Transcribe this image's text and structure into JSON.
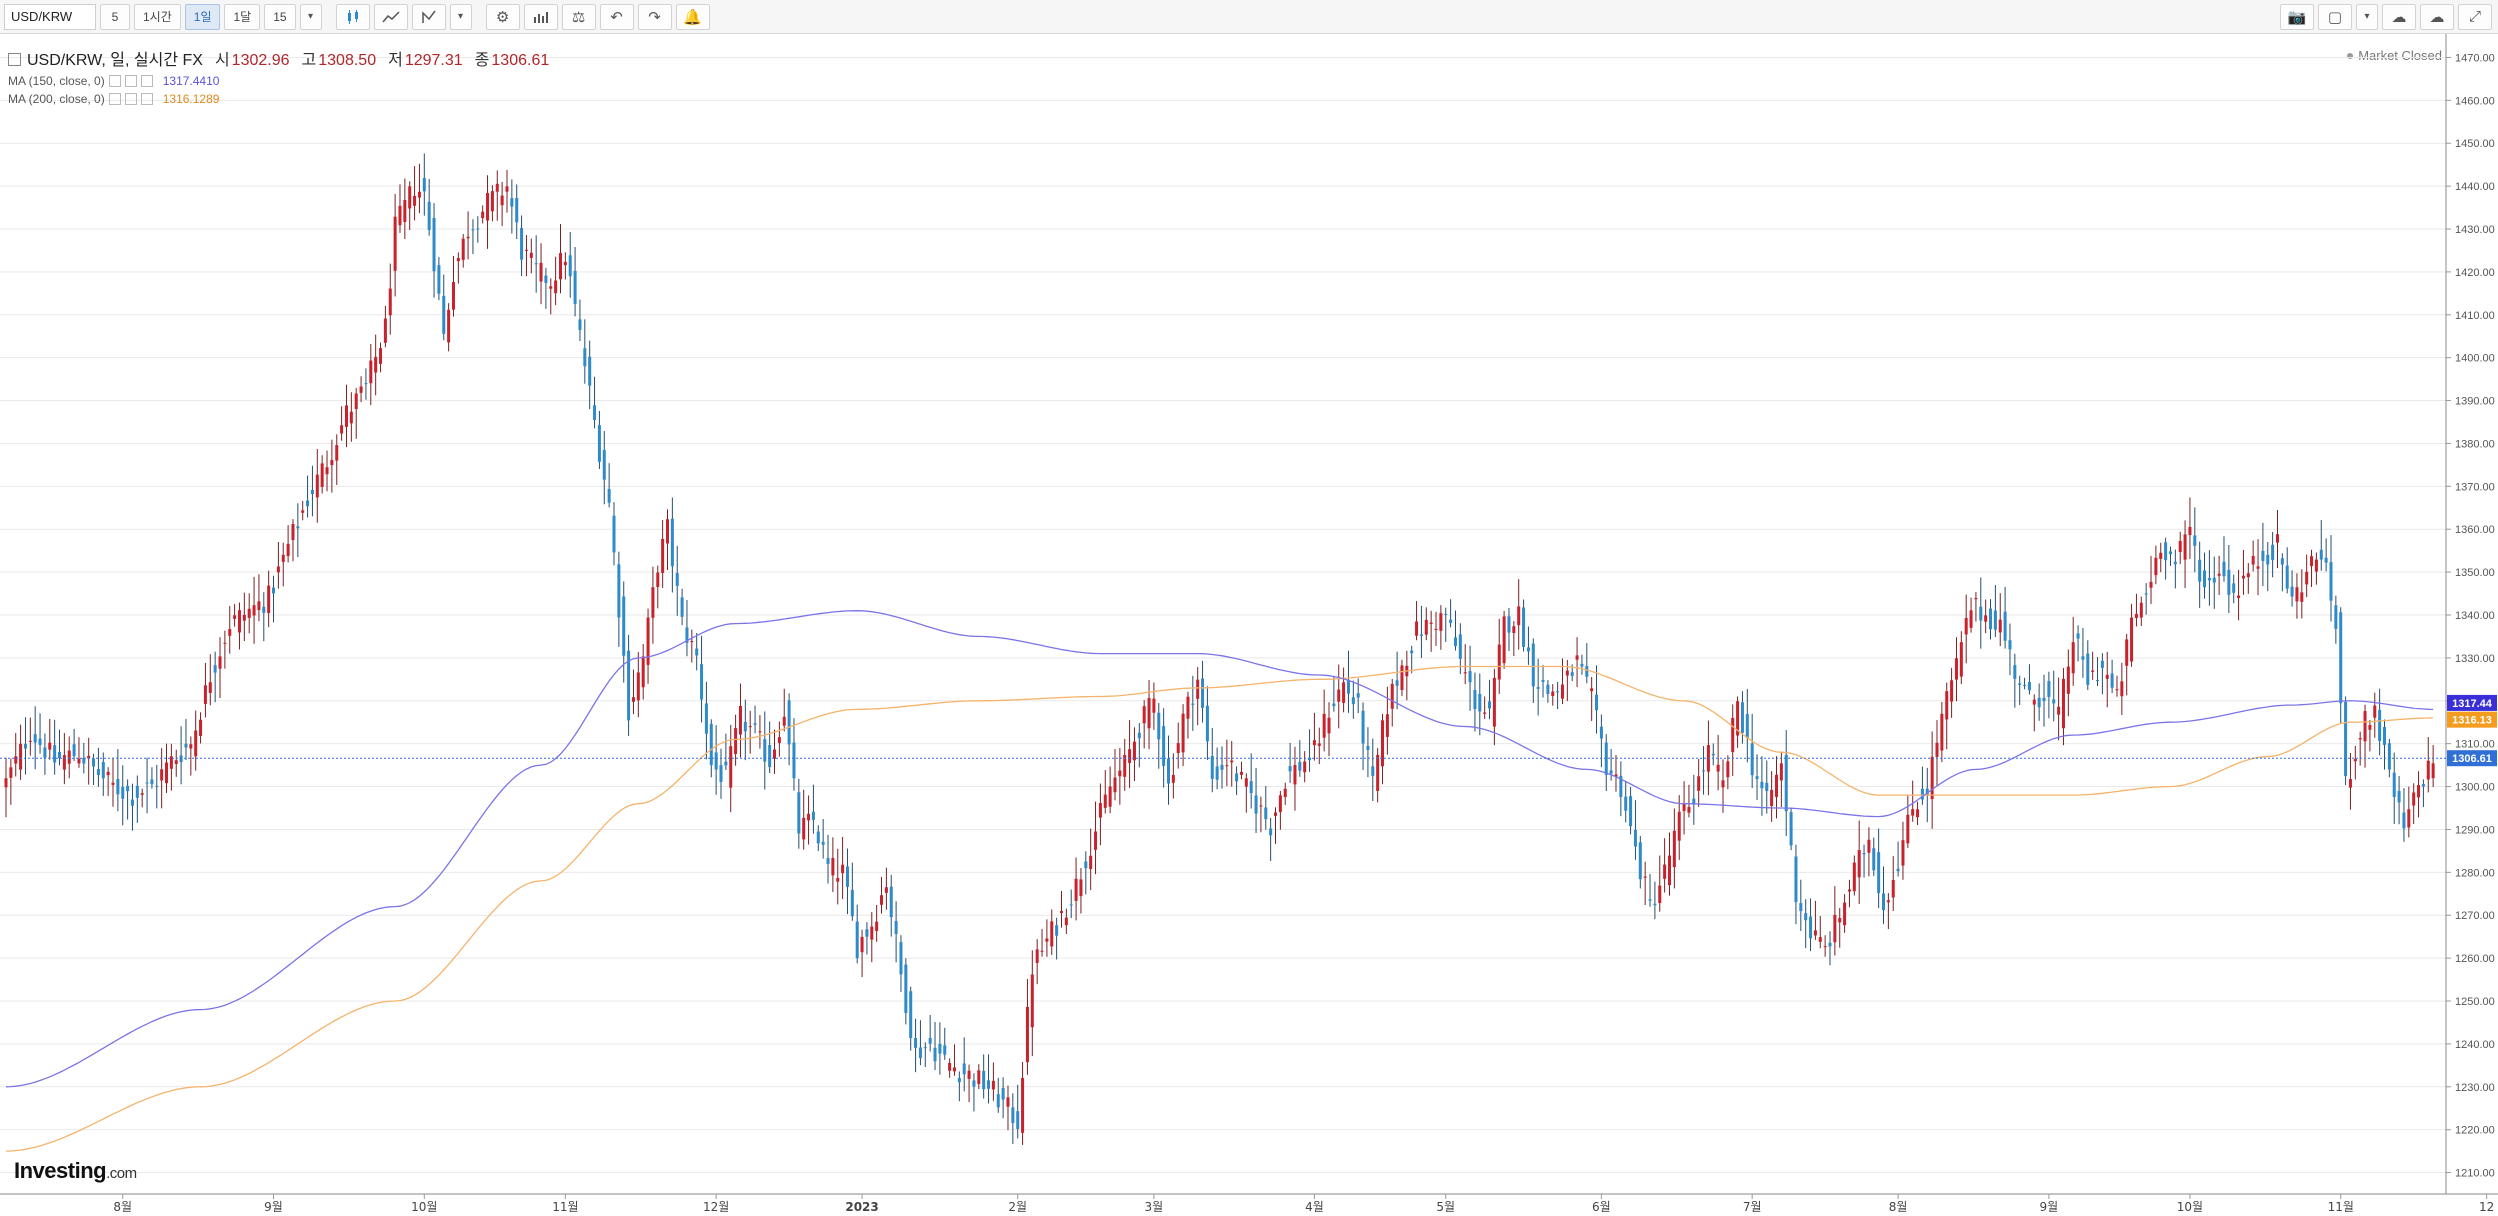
{
  "toolbar": {
    "symbol": "USD/KRW",
    "interval_buttons": [
      "5",
      "1시간",
      "1일",
      "1달",
      "15"
    ],
    "active_interval": "1일"
  },
  "legend": {
    "title": "USD/KRW, 일, 실시간 FX",
    "open_label": "시",
    "open": "1302.96",
    "high_label": "고",
    "high": "1308.50",
    "low_label": "저",
    "low": "1297.31",
    "close_label": "종",
    "close": "1306.61",
    "ma150_label": "MA (150, close, 0)",
    "ma150_value": "1317.4410",
    "ma200_label": "MA (200, close, 0)",
    "ma200_value": "1316.1289"
  },
  "market_status": "Market Closed",
  "logo": {
    "main": "Investing",
    "suffix": ".com"
  },
  "colors": {
    "up": "#c8232c",
    "down": "#2f8ac9",
    "ma150": "#7b74e8",
    "ma200": "#f5b36b",
    "grid": "#e9e9e9",
    "last_price_line": "#2f6fd6"
  },
  "chart_data": {
    "type": "candlestick",
    "title": "USD/KRW",
    "ylim": [
      1205,
      1475
    ],
    "y_ticks": [
      1210,
      1220,
      1230,
      1240,
      1250,
      1260,
      1270,
      1280,
      1290,
      1300,
      1310,
      1320,
      1330,
      1340,
      1350,
      1360,
      1370,
      1380,
      1390,
      1400,
      1410,
      1420,
      1430,
      1440,
      1450,
      1460,
      1470
    ],
    "y_tick_labels": [
      "1210.00",
      "1220.00",
      "1230.00",
      "1240.00",
      "1250.00",
      "1260.00",
      "1270.00",
      "1280.00",
      "1290.00",
      "1300.00",
      "1310.00",
      "1320.00",
      "1330.00",
      "1340.00",
      "1350.00",
      "1360.00",
      "1370.00",
      "1380.00",
      "1390.00",
      "1400.00",
      "1410.00",
      "1420.00",
      "1430.00",
      "1440.00",
      "1450.00",
      "1460.00",
      "1470.00"
    ],
    "x_labels": [
      {
        "label": "8월",
        "bar": 24
      },
      {
        "label": "9월",
        "bar": 55
      },
      {
        "label": "10월",
        "bar": 86
      },
      {
        "label": "11월",
        "bar": 115
      },
      {
        "label": "12월",
        "bar": 146
      },
      {
        "label": "2023",
        "bar": 176
      },
      {
        "label": "2월",
        "bar": 208
      },
      {
        "label": "3월",
        "bar": 236
      },
      {
        "label": "4월",
        "bar": 269
      },
      {
        "label": "5월",
        "bar": 296
      },
      {
        "label": "6월",
        "bar": 328
      },
      {
        "label": "7월",
        "bar": 359
      },
      {
        "label": "8월",
        "bar": 389
      },
      {
        "label": "9월",
        "bar": 420
      },
      {
        "label": "10월",
        "bar": 449
      },
      {
        "label": "11월",
        "bar": 480
      },
      {
        "label": "12",
        "bar": 510
      }
    ],
    "anchor_closes": [
      [
        0,
        1301
      ],
      [
        5,
        1313
      ],
      [
        10,
        1306
      ],
      [
        15,
        1308
      ],
      [
        18,
        1304
      ],
      [
        22,
        1300
      ],
      [
        26,
        1298
      ],
      [
        30,
        1300
      ],
      [
        34,
        1306
      ],
      [
        38,
        1310
      ],
      [
        42,
        1326
      ],
      [
        46,
        1338
      ],
      [
        50,
        1341
      ],
      [
        54,
        1344
      ],
      [
        58,
        1356
      ],
      [
        62,
        1367
      ],
      [
        66,
        1376
      ],
      [
        70,
        1387
      ],
      [
        74,
        1393
      ],
      [
        78,
        1407
      ],
      [
        80,
        1430
      ],
      [
        84,
        1440
      ],
      [
        86,
        1438
      ],
      [
        88,
        1423
      ],
      [
        90,
        1405
      ],
      [
        92,
        1420
      ],
      [
        95,
        1430
      ],
      [
        99,
        1436
      ],
      [
        103,
        1440
      ],
      [
        106,
        1425
      ],
      [
        109,
        1420
      ],
      [
        112,
        1418
      ],
      [
        115,
        1424
      ],
      [
        118,
        1405
      ],
      [
        121,
        1385
      ],
      [
        124,
        1366
      ],
      [
        126,
        1342
      ],
      [
        128,
        1318
      ],
      [
        131,
        1330
      ],
      [
        134,
        1352
      ],
      [
        136,
        1360
      ],
      [
        139,
        1338
      ],
      [
        142,
        1330
      ],
      [
        145,
        1305
      ],
      [
        148,
        1302
      ],
      [
        151,
        1316
      ],
      [
        154,
        1312
      ],
      [
        157,
        1306
      ],
      [
        160,
        1318
      ],
      [
        163,
        1290
      ],
      [
        166,
        1292
      ],
      [
        169,
        1281
      ],
      [
        172,
        1280
      ],
      [
        175,
        1263
      ],
      [
        178,
        1268
      ],
      [
        181,
        1278
      ],
      [
        184,
        1256
      ],
      [
        187,
        1238
      ],
      [
        190,
        1240
      ],
      [
        193,
        1236
      ],
      [
        196,
        1234
      ],
      [
        199,
        1232
      ],
      [
        202,
        1230
      ],
      [
        205,
        1226
      ],
      [
        208,
        1222
      ],
      [
        211,
        1258
      ],
      [
        214,
        1264
      ],
      [
        217,
        1270
      ],
      [
        220,
        1277
      ],
      [
        224,
        1290
      ],
      [
        227,
        1300
      ],
      [
        230,
        1305
      ],
      [
        233,
        1314
      ],
      [
        236,
        1320
      ],
      [
        239,
        1300
      ],
      [
        242,
        1316
      ],
      [
        245,
        1325
      ],
      [
        248,
        1302
      ],
      [
        251,
        1306
      ],
      [
        254,
        1301
      ],
      [
        257,
        1296
      ],
      [
        260,
        1291
      ],
      [
        263,
        1302
      ],
      [
        266,
        1305
      ],
      [
        269,
        1308
      ],
      [
        272,
        1318
      ],
      [
        275,
        1324
      ],
      [
        278,
        1318
      ],
      [
        281,
        1300
      ],
      [
        284,
        1319
      ],
      [
        287,
        1328
      ],
      [
        290,
        1336
      ],
      [
        293,
        1338
      ],
      [
        296,
        1340
      ],
      [
        299,
        1329
      ],
      [
        302,
        1320
      ],
      [
        305,
        1316
      ],
      [
        308,
        1338
      ],
      [
        311,
        1340
      ],
      [
        314,
        1326
      ],
      [
        317,
        1322
      ],
      [
        320,
        1323
      ],
      [
        323,
        1329
      ],
      [
        326,
        1320
      ],
      [
        329,
        1305
      ],
      [
        332,
        1300
      ],
      [
        335,
        1285
      ],
      [
        338,
        1272
      ],
      [
        341,
        1280
      ],
      [
        344,
        1292
      ],
      [
        347,
        1298
      ],
      [
        350,
        1308
      ],
      [
        353,
        1300
      ],
      [
        356,
        1320
      ],
      [
        359,
        1305
      ],
      [
        362,
        1296
      ],
      [
        365,
        1305
      ],
      [
        368,
        1275
      ],
      [
        371,
        1266
      ],
      [
        374,
        1262
      ],
      [
        377,
        1270
      ],
      [
        380,
        1280
      ],
      [
        383,
        1288
      ],
      [
        386,
        1272
      ],
      [
        389,
        1283
      ],
      [
        392,
        1295
      ],
      [
        395,
        1300
      ],
      [
        398,
        1316
      ],
      [
        401,
        1328
      ],
      [
        404,
        1342
      ],
      [
        407,
        1340
      ],
      [
        410,
        1338
      ],
      [
        413,
        1327
      ],
      [
        416,
        1320
      ],
      [
        419,
        1322
      ],
      [
        422,
        1316
      ],
      [
        425,
        1335
      ],
      [
        428,
        1325
      ],
      [
        431,
        1328
      ],
      [
        434,
        1320
      ],
      [
        437,
        1338
      ],
      [
        440,
        1345
      ],
      [
        443,
        1357
      ],
      [
        446,
        1352
      ],
      [
        449,
        1360
      ],
      [
        452,
        1346
      ],
      [
        455,
        1351
      ],
      [
        458,
        1345
      ],
      [
        461,
        1350
      ],
      [
        464,
        1354
      ],
      [
        467,
        1356
      ],
      [
        470,
        1343
      ],
      [
        473,
        1350
      ],
      [
        476,
        1355
      ],
      [
        479,
        1338
      ],
      [
        481,
        1300
      ],
      [
        484,
        1313
      ],
      [
        487,
        1318
      ],
      [
        490,
        1302
      ],
      [
        493,
        1290
      ],
      [
        496,
        1300
      ],
      [
        499,
        1306.61
      ]
    ],
    "ma150_points": [
      [
        0,
        1230
      ],
      [
        40,
        1248
      ],
      [
        80,
        1272
      ],
      [
        110,
        1305
      ],
      [
        130,
        1330
      ],
      [
        150,
        1338
      ],
      [
        175,
        1341
      ],
      [
        200,
        1335
      ],
      [
        225,
        1331
      ],
      [
        245,
        1331
      ],
      [
        270,
        1326
      ],
      [
        300,
        1314
      ],
      [
        325,
        1304
      ],
      [
        345,
        1296
      ],
      [
        365,
        1295
      ],
      [
        385,
        1293
      ],
      [
        405,
        1304
      ],
      [
        425,
        1312
      ],
      [
        445,
        1315
      ],
      [
        470,
        1319
      ],
      [
        482,
        1320
      ],
      [
        499,
        1318
      ]
    ],
    "ma200_points": [
      [
        0,
        1215
      ],
      [
        40,
        1230
      ],
      [
        80,
        1250
      ],
      [
        110,
        1278
      ],
      [
        130,
        1296
      ],
      [
        150,
        1311
      ],
      [
        175,
        1318
      ],
      [
        200,
        1320
      ],
      [
        225,
        1321
      ],
      [
        245,
        1323
      ],
      [
        270,
        1325
      ],
      [
        300,
        1328
      ],
      [
        320,
        1328
      ],
      [
        345,
        1320
      ],
      [
        365,
        1308
      ],
      [
        385,
        1298
      ],
      [
        405,
        1298
      ],
      [
        425,
        1298
      ],
      [
        445,
        1300
      ],
      [
        465,
        1307
      ],
      [
        482,
        1315
      ],
      [
        499,
        1316
      ]
    ],
    "last_price": 1306.61,
    "last_price_label": "1306.61",
    "ma150_axis_label": "1317.44",
    "ma200_axis_label": "1316.13",
    "bar_count": 500
  }
}
